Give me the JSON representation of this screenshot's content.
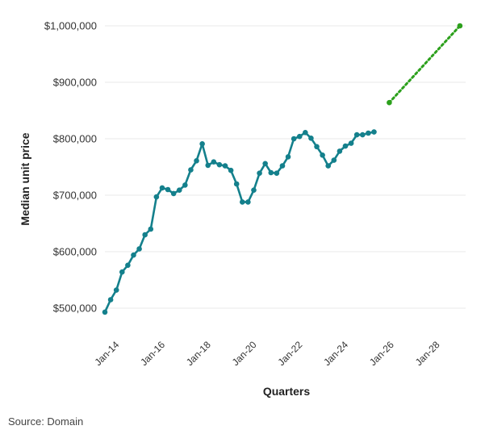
{
  "chart_data": {
    "type": "line",
    "xlabel": "Quarters",
    "ylabel": "Median unit price",
    "ylim": [
      450000,
      1000000
    ],
    "y_ticks": [
      500000,
      600000,
      700000,
      800000,
      900000,
      1000000
    ],
    "y_tick_labels": [
      "$500,000",
      "$600,000",
      "$700,000",
      "$800,000",
      "$900,000",
      "$1,000,000"
    ],
    "x_ticks": [
      "2014-01",
      "2016-01",
      "2018-01",
      "2020-01",
      "2022-01",
      "2024-01",
      "2026-01",
      "2028-01"
    ],
    "x_tick_labels": [
      "Jan-14",
      "Jan-16",
      "Jan-18",
      "Jan-20",
      "Jan-22",
      "Jan-24",
      "Jan-26",
      "Jan-28"
    ],
    "xlim": [
      "2013-07",
      "2029-04"
    ],
    "grid": "horizontal",
    "series": [
      {
        "color": "#14808c",
        "style": "solid",
        "points": [
          [
            "2013-07",
            493000
          ],
          [
            "2013-10",
            515000
          ],
          [
            "2014-01",
            532000
          ],
          [
            "2014-04",
            564000
          ],
          [
            "2014-07",
            576000
          ],
          [
            "2014-10",
            594000
          ],
          [
            "2015-01",
            605000
          ],
          [
            "2015-04",
            630000
          ],
          [
            "2015-07",
            640000
          ],
          [
            "2015-10",
            697000
          ],
          [
            "2016-01",
            713000
          ],
          [
            "2016-04",
            710000
          ],
          [
            "2016-07",
            703000
          ],
          [
            "2016-10",
            709000
          ],
          [
            "2017-01",
            718000
          ],
          [
            "2017-04",
            745000
          ],
          [
            "2017-07",
            761000
          ],
          [
            "2017-10",
            791000
          ],
          [
            "2018-01",
            753000
          ],
          [
            "2018-04",
            759000
          ],
          [
            "2018-07",
            754000
          ],
          [
            "2018-10",
            752000
          ],
          [
            "2019-01",
            744000
          ],
          [
            "2019-04",
            720000
          ],
          [
            "2019-07",
            688000
          ],
          [
            "2019-10",
            688000
          ],
          [
            "2020-01",
            709000
          ],
          [
            "2020-04",
            739000
          ],
          [
            "2020-07",
            756000
          ],
          [
            "2020-10",
            740000
          ],
          [
            "2021-01",
            739000
          ],
          [
            "2021-04",
            752000
          ],
          [
            "2021-07",
            768000
          ],
          [
            "2021-10",
            800000
          ],
          [
            "2022-01",
            804000
          ],
          [
            "2022-04",
            811000
          ],
          [
            "2022-07",
            801000
          ],
          [
            "2022-10",
            786000
          ],
          [
            "2023-01",
            771000
          ],
          [
            "2023-04",
            752000
          ],
          [
            "2023-07",
            762000
          ],
          [
            "2023-10",
            778000
          ],
          [
            "2024-01",
            787000
          ],
          [
            "2024-04",
            792000
          ],
          [
            "2024-07",
            807000
          ],
          [
            "2024-10",
            807000
          ],
          [
            "2025-01",
            810000
          ],
          [
            "2025-04",
            812000
          ]
        ]
      },
      {
        "color": "#2ca01c",
        "style": "dotted",
        "points": [
          [
            "2025-12",
            864000
          ],
          [
            "2029-01",
            1000000
          ]
        ]
      }
    ]
  },
  "source": "Source: Domain"
}
